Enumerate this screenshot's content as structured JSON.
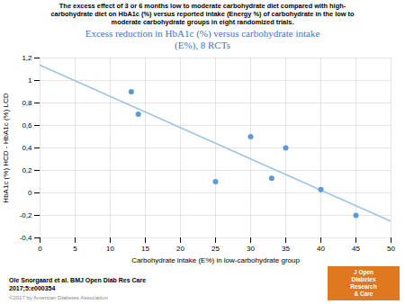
{
  "chart_data": {
    "type": "scatter",
    "title": "The excess effect of 3 or 6 months low to moderate carbohydrate diet compared with high-\ncarbohydrate diet on HbA1c (%) versus reported intake (Energy %) of carbohydrate in the low to\nmoderate carbohydrate groups in eight randomized trials.",
    "subtitle": "Excess reduction in HbA1c (%) versus carbohydrate  intake\n(E%), 8 RCTs",
    "subtitle_color": "#4472c4",
    "x": [
      13,
      14,
      25,
      30,
      33,
      35,
      40,
      45
    ],
    "values": [
      0.9,
      0.7,
      0.1,
      0.5,
      0.13,
      0.4,
      0.03,
      -0.2
    ],
    "color": "#5b9bd5",
    "trendline": {
      "type": "line",
      "color": "#9dc3e6",
      "x": [
        0,
        50
      ],
      "values": [
        1.1357,
        -0.2527
      ]
    },
    "xlim": [
      0,
      50
    ],
    "ylim": [
      -0.4,
      1.2
    ],
    "xticks": [
      0,
      5,
      10,
      15,
      20,
      25,
      30,
      35,
      40,
      45,
      50
    ],
    "yticks": [
      {
        "value": -0.4,
        "label": "-0,4"
      },
      {
        "value": -0.2,
        "label": "-0,2"
      },
      0,
      {
        "value": 0.2,
        "label": "0,2"
      },
      {
        "value": 0.4,
        "label": "0,4"
      },
      {
        "value": 0.6,
        "label": "0,6"
      },
      {
        "value": 0.8,
        "label": "0,8"
      },
      1,
      {
        "value": 1.2,
        "label": "1,2"
      }
    ],
    "grid": true,
    "xlabel": "Carbohydrate intake (E%) in low-carbohydrate group",
    "ylabel": "HbA1c (%) HCD - HbA1c (%) LCD",
    "citation": "Ole Snorgaard et al. BMJ Open Diab Res Care\n2017;5:e000354",
    "copyright": "©2017 by American Diabetes Association",
    "badge": "J Open\nDiabetes\nResearch\n& Care",
    "badge_color": "#e07820"
  }
}
